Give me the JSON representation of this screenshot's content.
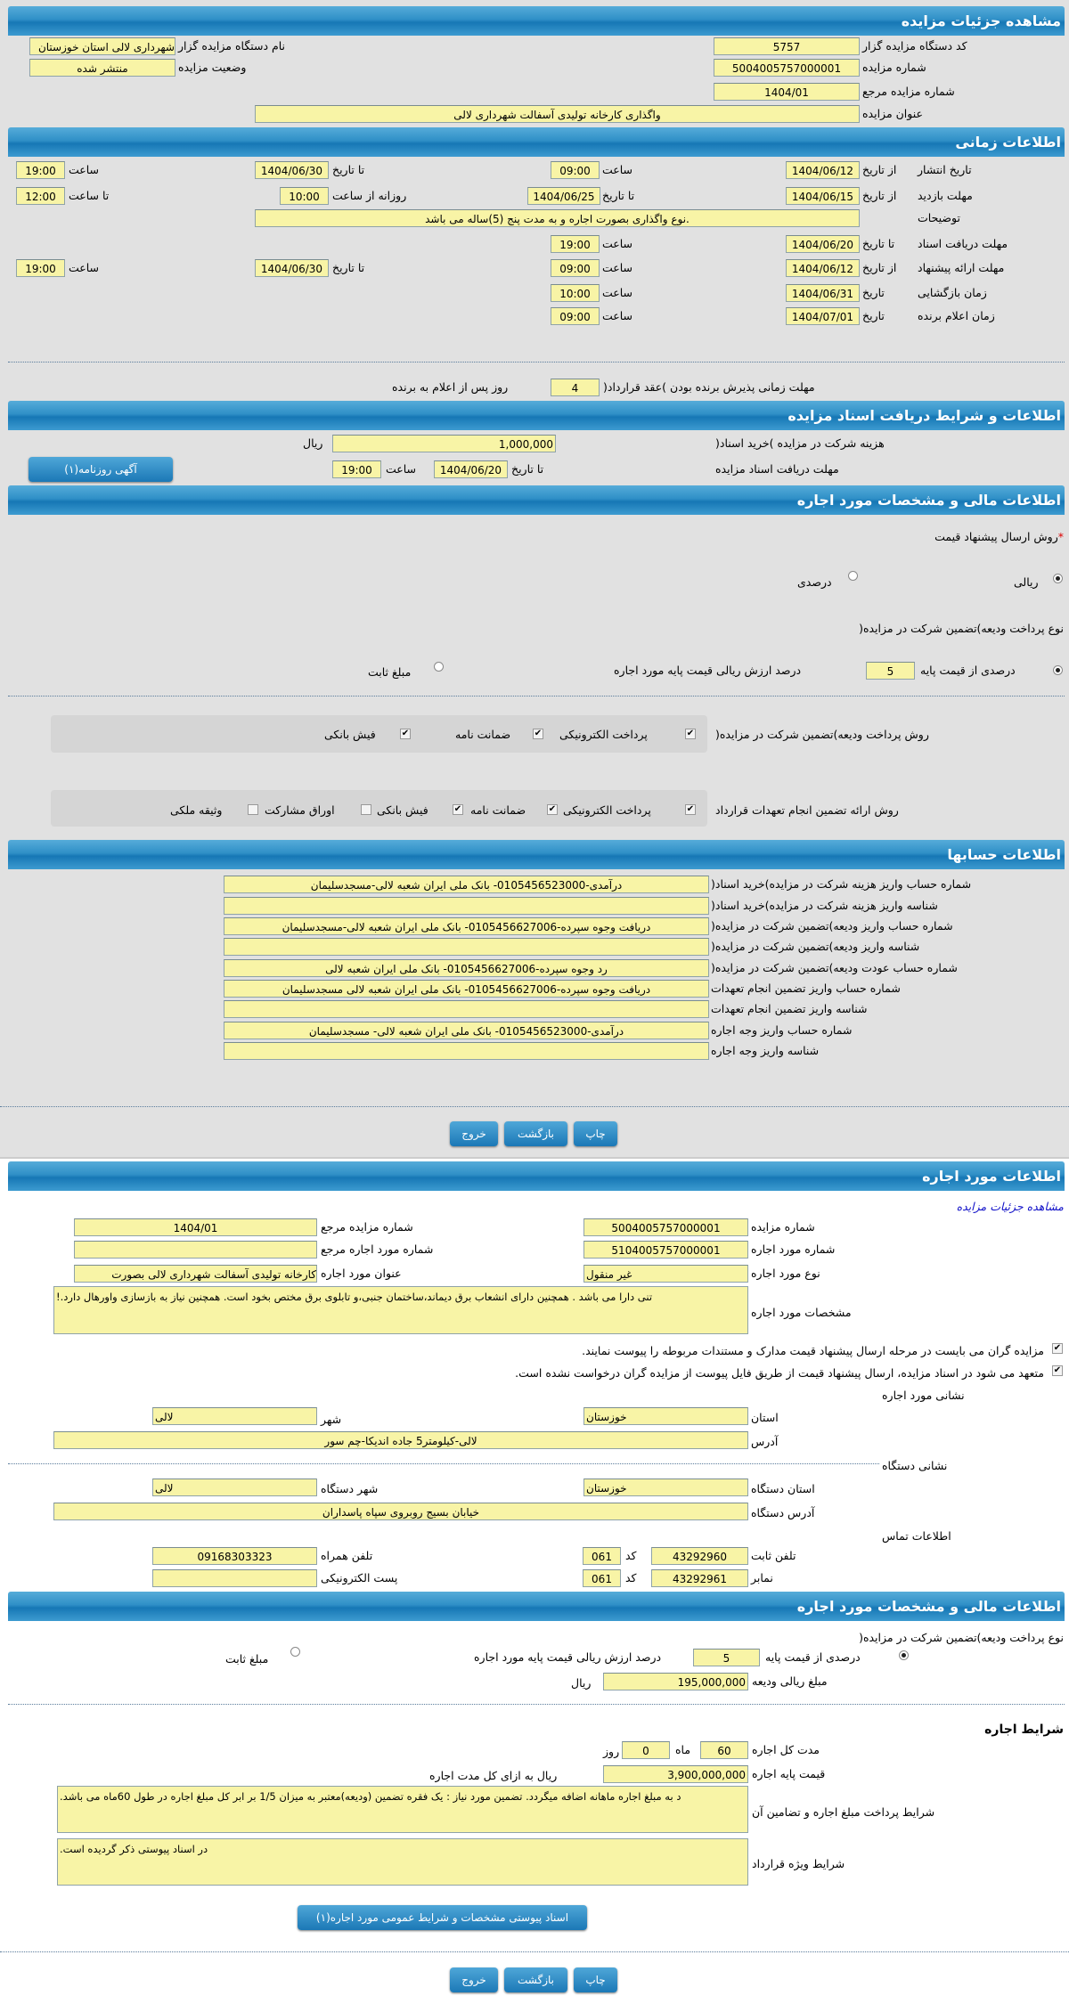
{
  "colors": {
    "header": "#1677b5",
    "field": "#f8f4a6",
    "link": "#1010c8",
    "required": "#dd0000"
  },
  "details": {
    "title": "مشاهده جزئیات مزایده",
    "org_code_label": "کد دستگاه مزایده گزار",
    "org_code": "5757",
    "org_name_label": "نام دستگاه مزایده گزار",
    "org_name": "شهرداری لالی استان خوزستان",
    "auction_no_label": "شماره مزایده",
    "auction_no": "5004005757000001",
    "status_label": "وضعیت مزایده",
    "status": "منتشر شده",
    "ref_no_label": "شماره مزایده مرجع",
    "ref_no": "1404/01",
    "subject_label": "عنوان مزایده",
    "subject": "واگذاری کارخانه تولیدی آسفالت شهرداری لالی"
  },
  "timing": {
    "title": "اطلاعات زمانی",
    "from_date": "از تاریخ",
    "to_date": "تا تاریخ",
    "date": "تاریخ",
    "hour": "ساعت",
    "daily_from": "روزانه از ساعت",
    "to_hour": "تا ساعت",
    "publish": {
      "label": "تاریخ انتشار",
      "from": "1404/06/12",
      "from_time": "09:00",
      "to": "1404/06/30",
      "to_time": "19:00"
    },
    "visit": {
      "label": "مهلت بازدید",
      "from": "1404/06/15",
      "to": "1404/06/25",
      "daily_from": "10:00",
      "daily_to": "12:00"
    },
    "notes_label": "توضیحات",
    "notes": ".نوع واگذاری بصورت اجاره و به مدت پنج (5)ساله می باشد",
    "docs": {
      "label": "مهلت دریافت اسناد",
      "to": "1404/06/20",
      "time": "19:00"
    },
    "offer": {
      "label": "مهلت ارائه پیشنهاد",
      "from": "1404/06/12",
      "from_time": "09:00",
      "to": "1404/06/30",
      "to_time": "19:00"
    },
    "opening": {
      "label": "زمان بازگشایی",
      "date": "1404/06/31",
      "time": "10:00"
    },
    "winner": {
      "label": "زمان اعلام برنده",
      "date": "1404/07/01",
      "time": "09:00"
    },
    "acceptance_label": "مهلت زمانی پذیرش برنده بودن )عقد قرارداد(",
    "acceptance_days": "4",
    "acceptance_suffix": "روز پس از اعلام به برنده"
  },
  "documents": {
    "title": "اطلاعات و شرایط دریافت اسناد مزایده",
    "fee_label": "هزینه شرکت در مزایده )خرید اسناد(",
    "fee": "1,000,000",
    "currency": "ریال",
    "deadline_label": "مهلت دریافت اسناد مزایده",
    "to_date": "تا تاریخ",
    "date": "1404/06/20",
    "hour": "ساعت",
    "time": "19:00",
    "newspaper_button": "آگهی روزنامه(۱)"
  },
  "financial": {
    "title": "اطلاعات مالی و مشخصات مورد اجاره",
    "price_method_label": "روش ارسال پیشنهاد قیمت",
    "required_mark": "*",
    "price_methods": [
      {
        "label": "ریالی",
        "selected": true
      },
      {
        "label": "درصدی",
        "selected": false
      }
    ],
    "deposit_type_label": "نوع پرداخت ودیعه)تضمین شرکت در مزایده(",
    "percent_option": "درصدی از قیمت پایه",
    "percent": "5",
    "percent_suffix": "درصد ارزش ریالی قیمت پایه مورد اجاره",
    "fixed_option": "مبلغ ثابت",
    "percent_selected": true,
    "deposit_methods_label": "روش پرداخت ودیعه)تضمین شرکت در مزایده(",
    "deposit_methods": [
      {
        "label": "پرداخت الکترونیکی",
        "checked": true
      },
      {
        "label": "ضمانت نامه",
        "checked": true
      },
      {
        "label": "فیش بانکی",
        "checked": true
      }
    ],
    "guarantee_methods_label": "روش ارائه تضمین انجام تعهدات قرارداد",
    "guarantee_methods": [
      {
        "label": "پرداخت الکترونیکی",
        "checked": true
      },
      {
        "label": "ضمانت نامه",
        "checked": true
      },
      {
        "label": "فیش بانکی",
        "checked": true
      },
      {
        "label": "اوراق مشارکت",
        "checked": false
      },
      {
        "label": "وثیقه ملکی",
        "checked": false
      }
    ]
  },
  "accounts": {
    "title": "اطلاعات حسابها",
    "rows": [
      {
        "label": "شماره حساب واریز هزینه شرکت در مزایده)خرید اسناد(",
        "value": "درآمدی-0105456523000- بانک ملی ایران شعبه لالی-مسجدسلیمان"
      },
      {
        "label": "شناسه واریز هزینه شرکت در مزایده)خرید اسناد(",
        "value": ""
      },
      {
        "label": "شماره حساب واریز ودیعه)تضمین شرکت در مزایده(",
        "value": "دریافت وجوه سپرده-0105456627006- بانک ملی ایران شعبه لالی-مسجدسلیمان"
      },
      {
        "label": "شناسه واریز ودیعه)تضمین شرکت در مزایده(",
        "value": ""
      },
      {
        "label": "شماره حساب عودت ودیعه)تضمین شرکت در مزایده(",
        "value": "رد وجوه سپرده-0105456627006- بانک ملی ایران شعبه لالی"
      },
      {
        "label": "شماره حساب واریز تضمین انجام تعهدات",
        "value": "دریافت وجوه سپرده-0105456627006- بانک ملی ایران شعبه لالی مسجدسلیمان"
      },
      {
        "label": "شناسه واریز تضمین انجام تعهدات",
        "value": ""
      },
      {
        "label": "شماره حساب واریز وجه اجاره",
        "value": "درآمدی-0105456523000- بانک ملی ایران شعبه لالی- مسجدسلیمان"
      },
      {
        "label": "شناسه واریز وجه اجاره",
        "value": ""
      }
    ]
  },
  "actions": {
    "print": "چاپ",
    "back": "بازگشت",
    "exit": "خروج"
  },
  "lease": {
    "title": "اطلاعات مورد اجاره",
    "details_link": "مشاهده جزئیات مزایده",
    "auction_no_label": "شماره مزایده",
    "auction_no": "5004005757000001",
    "ref_no_label": "شماره مزایده مرجع",
    "ref_no": "1404/01",
    "item_no_label": "شماره مورد اجاره",
    "item_no": "5104005757000001",
    "item_ref_label": "شماره مورد اجاره مرجع",
    "item_ref": "",
    "item_type_label": "نوع مورد اجاره",
    "item_type": "غیر منقول",
    "item_title_label": "عنوان مورد اجاره",
    "item_title": "کارخانه تولیدی آسفالت شهرداری لالی بصورت",
    "specs_label": "مشخصات مورد اجاره",
    "specs": "تنی دارا می باشد . همچنین دارای انشعاب برق دیماند،ساختمان جنبی،و تابلوی برق مختص بخود است. همچنین نیاز به بازسازی واورهال دارد.!",
    "check1": "مزایده گران می بایست در مرحله ارسال پیشنهاد قیمت مدارک و مستندات مربوطه را پیوست نمایند.",
    "check2": "متعهد می شود در اسناد مزایده، ارسال پیشنهاد قیمت از طریق فایل پیوست از مزایده گران درخواست نشده است.",
    "address_title": "نشانی مورد اجاره",
    "province_label": "استان",
    "province": "خوزستان",
    "city_label": "شهر",
    "city": "لالی",
    "address_label": "آدرس",
    "address": "لالی-کیلومتر5 جاده اندیکا-چم سور",
    "org_address_title": "نشانی دستگاه",
    "org_province_label": "استان دستگاه",
    "org_province": "خوزستان",
    "org_city_label": "شهر دستگاه",
    "org_city": "لالی",
    "org_address_label": "آدرس دستگاه",
    "org_address": "خیابان بسیج روبروی سپاه پاسداران",
    "contact_title": "اطلاعات تماس",
    "phone_label": "تلفن ثابت",
    "phone": "43292960",
    "code_label": "کد",
    "phone_code": "061",
    "mobile_label": "تلفن همراه",
    "mobile": "09168303323",
    "fax_label": "نمابر",
    "fax": "43292961",
    "fax_code": "061",
    "email_label": "پست الکترونیکی",
    "email": ""
  },
  "lease_financial": {
    "title": "اطلاعات مالی و مشخصات مورد اجاره",
    "deposit_type_label": "نوع پرداخت ودیعه)تضمین شرکت در مزایده(",
    "percent_option": "درصدی از قیمت پایه",
    "percent": "5",
    "percent_suffix": "درصد ارزش ریالی قیمت پایه مورد اجاره",
    "fixed_option": "مبلغ ثابت",
    "deposit_amount_label": "مبلغ ریالی ودیعه",
    "deposit_amount": "195,000,000",
    "currency": "ریال",
    "terms_title": "شرایط اجاره",
    "duration_label": "مدت کل اجاره",
    "months": "60",
    "month_unit": "ماه",
    "days": "0",
    "day_unit": "روز",
    "base_price_label": "قیمت پایه اجاره",
    "base_price": "3,900,000,000",
    "base_price_suffix": "ریال به ازای کل مدت اجاره",
    "payment_terms_label": "شرایط پرداخت مبلغ اجاره و تضامین آن",
    "payment_terms": "د به مبلغ اجاره ماهانه اضافه میگردد. تضمین مورد نیاز : یک فقره تضمین (ودیعه)معتبر به میزان 1/5 بر ابر کل مبلغ اجاره در طول 60ماه می باشد.",
    "special_terms_label": "شرایط ویژه قرارداد",
    "special_terms": "در اسناد پیوستی ذکر گردیده است.",
    "attachments_button": "اسناد پیوستی مشخصات و شرایط عمومی مورد اجاره(۱)"
  }
}
